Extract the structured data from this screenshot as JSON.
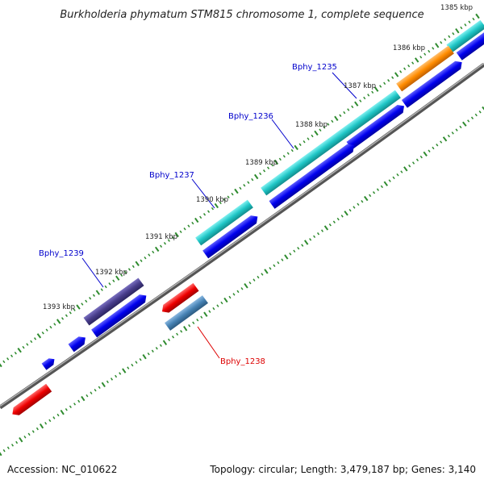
{
  "title": "Burkholderia phymatum STM815 chromosome 1, complete sequence",
  "footer": {
    "accession": "Accession: NC_010622",
    "summary": "Topology: circular; Length: 3,479,187 bp; Genes: 3,140"
  },
  "ticks": [
    {
      "label": "1385 kbp"
    },
    {
      "label": "1386 kbp"
    },
    {
      "label": "1387 kbp"
    },
    {
      "label": "1388 kbp"
    },
    {
      "label": "1389 kbp"
    },
    {
      "label": "1390 kbp"
    },
    {
      "label": "1391 kbp"
    },
    {
      "label": "1392 kbp"
    },
    {
      "label": "1393 kbp"
    }
  ],
  "gene_labels": [
    {
      "name": "Bphy_1235",
      "color": "#0000cc"
    },
    {
      "name": "Bphy_1236",
      "color": "#0000cc"
    },
    {
      "name": "Bphy_1237",
      "color": "#0000cc"
    },
    {
      "name": "Bphy_1238",
      "color": "#dd0000"
    },
    {
      "name": "Bphy_1239",
      "color": "#0000cc"
    }
  ],
  "colors": {
    "backbone": "#888888",
    "tick_marks": "#2e8b2e",
    "cds_forward": "#0000ee",
    "cds_reverse": "#ee0000",
    "feature_cyan": "#1fc6c6",
    "feature_orange": "#ff8c00",
    "feature_purple": "#483d8b",
    "feature_steelblue": "#4682b4"
  }
}
